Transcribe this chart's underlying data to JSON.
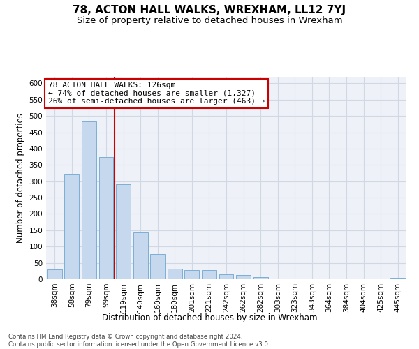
{
  "title": "78, ACTON HALL WALKS, WREXHAM, LL12 7YJ",
  "subtitle": "Size of property relative to detached houses in Wrexham",
  "xlabel": "Distribution of detached houses by size in Wrexham",
  "ylabel": "Number of detached properties",
  "categories": [
    "38sqm",
    "58sqm",
    "79sqm",
    "99sqm",
    "119sqm",
    "140sqm",
    "160sqm",
    "180sqm",
    "201sqm",
    "221sqm",
    "242sqm",
    "262sqm",
    "282sqm",
    "303sqm",
    "323sqm",
    "343sqm",
    "364sqm",
    "384sqm",
    "404sqm",
    "425sqm",
    "445sqm"
  ],
  "values": [
    30,
    320,
    483,
    375,
    290,
    143,
    77,
    33,
    28,
    27,
    14,
    13,
    6,
    3,
    2,
    1,
    1,
    0,
    0,
    1,
    4
  ],
  "bar_color": "#c5d8ed",
  "bar_edge_color": "#7bafd4",
  "vline_x": 3.5,
  "vline_color": "#cc0000",
  "annotation_text": "78 ACTON HALL WALKS: 126sqm\n← 74% of detached houses are smaller (1,327)\n26% of semi-detached houses are larger (463) →",
  "annotation_box_color": "#ffffff",
  "annotation_box_edge": "#cc0000",
  "ylim": [
    0,
    620
  ],
  "yticks": [
    0,
    50,
    100,
    150,
    200,
    250,
    300,
    350,
    400,
    450,
    500,
    550,
    600
  ],
  "grid_color": "#d0d8e4",
  "background_color": "#eef2f8",
  "footer": "Contains HM Land Registry data © Crown copyright and database right 2024.\nContains public sector information licensed under the Open Government Licence v3.0.",
  "title_fontsize": 11,
  "subtitle_fontsize": 9.5,
  "axis_label_fontsize": 8.5,
  "tick_fontsize": 7.5,
  "annotation_fontsize": 8
}
